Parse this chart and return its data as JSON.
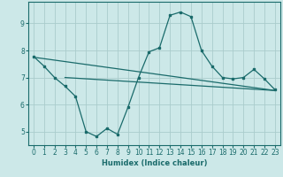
{
  "x": [
    0,
    1,
    2,
    3,
    4,
    5,
    6,
    7,
    8,
    9,
    10,
    11,
    12,
    13,
    14,
    15,
    16,
    17,
    18,
    19,
    20,
    21,
    22,
    23
  ],
  "curve": [
    7.78,
    7.42,
    7.0,
    6.68,
    6.3,
    5.0,
    4.82,
    5.12,
    4.9,
    5.9,
    7.0,
    7.95,
    8.1,
    9.3,
    9.42,
    9.25,
    8.0,
    7.42,
    7.0,
    6.95,
    7.0,
    7.3,
    6.95,
    6.55
  ],
  "line1_x": [
    0,
    23
  ],
  "line1_y": [
    7.75,
    6.52
  ],
  "line2_x": [
    3,
    23
  ],
  "line2_y": [
    7.0,
    6.52
  ],
  "bg_color": "#cce8e8",
  "grid_color": "#aacccc",
  "line_color": "#1a6b6b",
  "xlabel": "Humidex (Indice chaleur)",
  "yticks": [
    5,
    6,
    7,
    8,
    9
  ],
  "xticks": [
    0,
    1,
    2,
    3,
    4,
    5,
    6,
    7,
    8,
    9,
    10,
    11,
    12,
    13,
    14,
    15,
    16,
    17,
    18,
    19,
    20,
    21,
    22,
    23
  ],
  "xlim": [
    -0.5,
    23.5
  ],
  "ylim": [
    4.5,
    9.8
  ]
}
